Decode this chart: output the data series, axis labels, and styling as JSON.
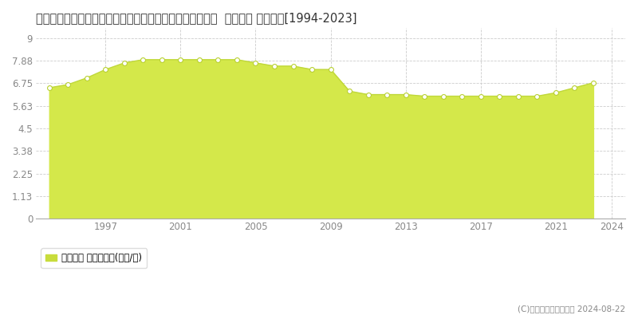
{
  "title": "北海道上川郡東神楽町ひじり野北１条１丁目９５番１００  地価公示 地価推移[1994-2023]",
  "years": [
    1994,
    1995,
    1996,
    1997,
    1998,
    1999,
    2000,
    2001,
    2002,
    2003,
    2004,
    2005,
    2006,
    2007,
    2008,
    2009,
    2010,
    2011,
    2012,
    2013,
    2014,
    2015,
    2016,
    2017,
    2018,
    2019,
    2020,
    2021,
    2022,
    2023
  ],
  "values": [
    6.53,
    6.69,
    7.02,
    7.44,
    7.77,
    7.93,
    7.93,
    7.93,
    7.93,
    7.93,
    7.93,
    7.77,
    7.61,
    7.61,
    7.44,
    7.44,
    6.36,
    6.19,
    6.19,
    6.19,
    6.11,
    6.11,
    6.11,
    6.11,
    6.11,
    6.11,
    6.11,
    6.28,
    6.53,
    6.78
  ],
  "fill_color": "#d4e84a",
  "line_color": "#c0d83a",
  "marker_facecolor": "#ffffff",
  "marker_edgecolor": "#b8d030",
  "background_color": "#ffffff",
  "plot_bg_color": "#ffffff",
  "grid_color": "#cccccc",
  "yticks": [
    0,
    1.13,
    2.25,
    3.38,
    4.5,
    5.63,
    6.75,
    7.88,
    9
  ],
  "ylim_max": 9.5,
  "xlim_start": 1993.3,
  "xlim_end": 2024.7,
  "xticks": [
    1997,
    2001,
    2005,
    2009,
    2013,
    2017,
    2021,
    2024
  ],
  "legend_label": "地価公示 平均坪単価(万円/坪)",
  "legend_square_color": "#c8dc3c",
  "watermark": "(C)土地価格ドットコム 2024-08-22",
  "title_fontsize": 10.5,
  "tick_fontsize": 8.5,
  "legend_fontsize": 8.5,
  "watermark_fontsize": 7.5
}
